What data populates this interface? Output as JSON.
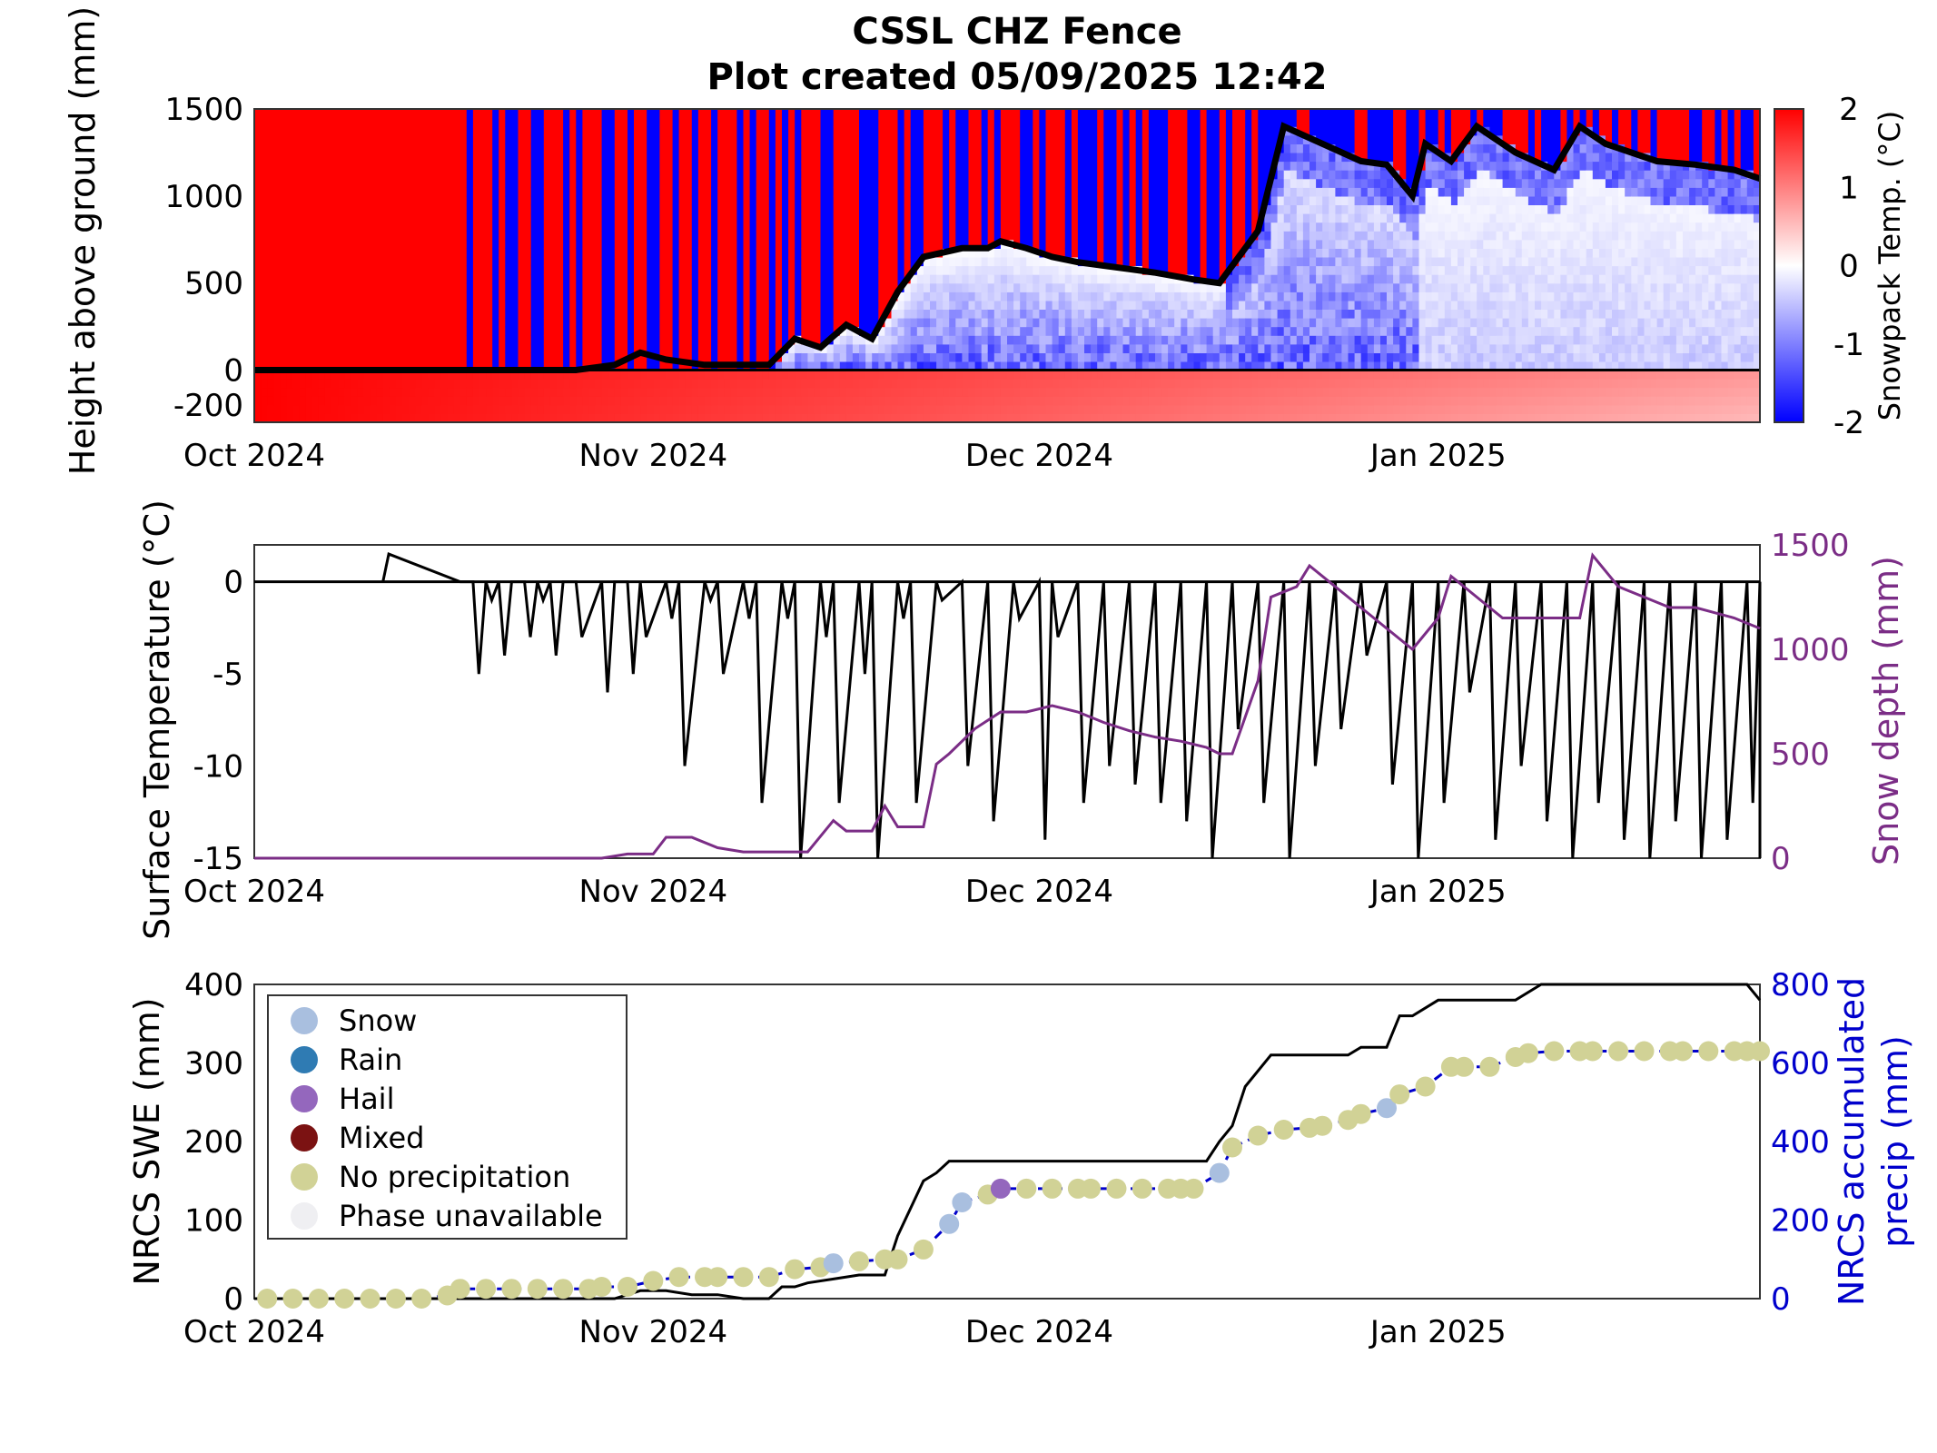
{
  "figure": {
    "title_line1": "CSSL CHZ Fence",
    "title_line2": "Plot created 05/09/2025 12:42"
  },
  "chart_data": [
    {
      "type": "heatmap",
      "ylabel": "Height above ground (mm)",
      "colorbar_label": "Snowpack Temp. (°C)",
      "colorbar_ticks": [
        "2",
        "1",
        "0",
        "-1",
        "-2"
      ],
      "colorbar_range": [
        -2,
        2
      ],
      "colormap": [
        "#0000ff",
        "#ffffff",
        "#ff0000"
      ],
      "ylim": [
        -300,
        1500
      ],
      "yticks": [
        "1500",
        "1000",
        "500",
        "0",
        "-200"
      ],
      "xticks": [
        "Oct 2024",
        "Nov 2024",
        "Dec 2024",
        "Jan 2025"
      ],
      "xlim_days": [
        0,
        117
      ],
      "snow_depth_line": {
        "color": "#000000",
        "x_days": [
          0,
          25,
          28,
          30,
          32,
          35,
          37,
          40,
          42,
          44,
          46,
          48,
          50,
          52,
          55,
          57,
          58,
          60,
          62,
          64,
          66,
          68,
          70,
          73,
          75,
          78,
          80,
          83,
          86,
          88,
          90,
          91,
          93,
          95,
          98,
          101,
          103,
          105,
          107,
          109,
          112,
          115,
          117
        ],
        "depth_mm": [
          0,
          0,
          30,
          100,
          60,
          30,
          30,
          30,
          180,
          130,
          260,
          180,
          450,
          650,
          700,
          700,
          740,
          700,
          650,
          620,
          600,
          580,
          560,
          520,
          500,
          800,
          1400,
          1300,
          1200,
          1180,
          1000,
          1300,
          1200,
          1400,
          1250,
          1150,
          1400,
          1300,
          1250,
          1200,
          1180,
          1150,
          1100
        ]
      }
    },
    {
      "type": "line",
      "ylabel": "Surface Temperature (°C)",
      "ylabel_right": "Snow depth (mm)",
      "ylim": [
        -15,
        2
      ],
      "ylim_right": [
        0,
        1500
      ],
      "yticks": [
        "0",
        "-5",
        "-10",
        "-15"
      ],
      "yticks_right": [
        "1500",
        "1000",
        "500",
        "0"
      ],
      "xticks": [
        "Oct 2024",
        "Nov 2024",
        "Dec 2024",
        "Jan 2025"
      ],
      "series": [
        {
          "axis": "left",
          "color": "#000000",
          "note_values": "diurnal temperature oscillation",
          "x_days": [
            10,
            16,
            17,
            18,
            19,
            20,
            21,
            22,
            23,
            24,
            25,
            27,
            28,
            29,
            30,
            32,
            33,
            35,
            36,
            38,
            39,
            41,
            42,
            44,
            45,
            47,
            48,
            50,
            51,
            53,
            55,
            57,
            59,
            61,
            62,
            64,
            66,
            68,
            70,
            72,
            74,
            76,
            78,
            80,
            82,
            84,
            86,
            88,
            90,
            92,
            94,
            96,
            98,
            100,
            102,
            104,
            106,
            108,
            110,
            112,
            114,
            116,
            117
          ],
          "temp_c": [
            1.5,
            0,
            -5,
            -1,
            -4,
            0,
            -3,
            -1,
            -4,
            0,
            -3,
            -6,
            0,
            -5,
            -3,
            -2,
            -10,
            -1,
            -5,
            -2,
            -12,
            -2,
            -15,
            -3,
            -12,
            -5,
            -15,
            -2,
            -12,
            -1,
            -10,
            -13,
            -2,
            -14,
            -3,
            -12,
            -10,
            -11,
            -12,
            -13,
            -15,
            -8,
            -12,
            -15,
            -10,
            -8,
            -4,
            -11,
            -15,
            -12,
            -6,
            -14,
            -10,
            -13,
            -15,
            -12,
            -14,
            -15,
            -13,
            -15,
            -14,
            -12,
            -15
          ]
        },
        {
          "axis": "right",
          "name": "Snow depth (mm)",
          "color": "#7b2d86",
          "x_days": [
            0,
            27,
            29,
            31,
            32,
            34,
            36,
            38,
            40,
            41,
            43,
            45,
            46,
            48,
            49,
            50,
            52,
            53,
            54,
            56,
            58,
            60,
            62,
            64,
            66,
            68,
            70,
            72,
            74,
            75,
            76,
            78,
            79,
            81,
            82,
            84,
            86,
            88,
            90,
            92,
            93,
            94,
            96,
            97,
            99,
            101,
            103,
            104,
            106,
            108,
            110,
            112,
            115,
            117
          ],
          "depth_mm": [
            0,
            0,
            20,
            20,
            100,
            100,
            50,
            30,
            30,
            30,
            30,
            180,
            130,
            130,
            250,
            150,
            150,
            450,
            500,
            620,
            700,
            700,
            730,
            700,
            650,
            610,
            580,
            560,
            530,
            500,
            500,
            850,
            1250,
            1300,
            1400,
            1300,
            1200,
            1100,
            1000,
            1150,
            1350,
            1300,
            1200,
            1150,
            1150,
            1150,
            1150,
            1450,
            1300,
            1250,
            1200,
            1200,
            1150,
            1100
          ]
        }
      ]
    },
    {
      "type": "line",
      "ylabel": "NRCS SWE (mm)",
      "ylabel_right": "NRCS accumulated precip (mm)",
      "ylim": [
        0,
        400
      ],
      "ylim_right": [
        0,
        800
      ],
      "yticks": [
        "400",
        "300",
        "200",
        "100",
        "0"
      ],
      "yticks_right": [
        "800",
        "600",
        "400",
        "200",
        "0"
      ],
      "xticks": [
        "Oct 2024",
        "Nov 2024",
        "Dec 2024",
        "Jan 2025"
      ],
      "series": [
        {
          "axis": "left",
          "name": "NRCS SWE (mm)",
          "color": "#000000",
          "x_days": [
            0,
            28,
            30,
            32,
            34,
            36,
            38,
            40,
            41,
            42,
            43,
            45,
            47,
            49,
            50,
            52,
            53,
            54,
            56,
            58,
            60,
            62,
            64,
            66,
            68,
            70,
            72,
            74,
            75,
            76,
            77,
            79,
            81,
            83,
            85,
            86,
            87,
            88,
            89,
            90,
            92,
            94,
            95,
            96,
            98,
            100,
            102,
            104,
            106,
            108,
            110,
            112,
            114,
            116,
            117
          ],
          "swe_mm": [
            0,
            0,
            10,
            10,
            5,
            5,
            0,
            0,
            15,
            15,
            20,
            25,
            30,
            30,
            80,
            150,
            160,
            175,
            175,
            175,
            175,
            175,
            175,
            175,
            175,
            175,
            175,
            175,
            200,
            220,
            270,
            310,
            310,
            310,
            310,
            320,
            320,
            320,
            360,
            360,
            380,
            380,
            380,
            380,
            380,
            400,
            400,
            400,
            400,
            400,
            400,
            400,
            400,
            400,
            380
          ]
        },
        {
          "axis": "right",
          "name": "NRCS accumulated precip (mm)",
          "color": "#0000cc",
          "style": "dashed",
          "markers": [
            {
              "day": 1,
              "value": 0,
              "phase": "No precipitation"
            },
            {
              "day": 3,
              "value": 0,
              "phase": "No precipitation"
            },
            {
              "day": 5,
              "value": 0,
              "phase": "No precipitation"
            },
            {
              "day": 7,
              "value": 0,
              "phase": "No precipitation"
            },
            {
              "day": 9,
              "value": 0,
              "phase": "No precipitation"
            },
            {
              "day": 11,
              "value": 0,
              "phase": "No precipitation"
            },
            {
              "day": 13,
              "value": 0,
              "phase": "No precipitation"
            },
            {
              "day": 15,
              "value": 8,
              "phase": "No precipitation"
            },
            {
              "day": 16,
              "value": 25,
              "phase": "No precipitation"
            },
            {
              "day": 18,
              "value": 25,
              "phase": "No precipitation"
            },
            {
              "day": 20,
              "value": 25,
              "phase": "No precipitation"
            },
            {
              "day": 22,
              "value": 25,
              "phase": "No precipitation"
            },
            {
              "day": 24,
              "value": 25,
              "phase": "No precipitation"
            },
            {
              "day": 26,
              "value": 25,
              "phase": "No precipitation"
            },
            {
              "day": 27,
              "value": 30,
              "phase": "No precipitation"
            },
            {
              "day": 29,
              "value": 30,
              "phase": "No precipitation"
            },
            {
              "day": 31,
              "value": 45,
              "phase": "No precipitation"
            },
            {
              "day": 33,
              "value": 55,
              "phase": "No precipitation"
            },
            {
              "day": 35,
              "value": 55,
              "phase": "No precipitation"
            },
            {
              "day": 36,
              "value": 55,
              "phase": "No precipitation"
            },
            {
              "day": 38,
              "value": 55,
              "phase": "No precipitation"
            },
            {
              "day": 40,
              "value": 55,
              "phase": "No precipitation"
            },
            {
              "day": 42,
              "value": 75,
              "phase": "No precipitation"
            },
            {
              "day": 44,
              "value": 80,
              "phase": "No precipitation"
            },
            {
              "day": 45,
              "value": 90,
              "phase": "Snow"
            },
            {
              "day": 47,
              "value": 95,
              "phase": "No precipitation"
            },
            {
              "day": 49,
              "value": 100,
              "phase": "No precipitation"
            },
            {
              "day": 50,
              "value": 100,
              "phase": "No precipitation"
            },
            {
              "day": 52,
              "value": 125,
              "phase": "No precipitation"
            },
            {
              "day": 54,
              "value": 190,
              "phase": "Snow"
            },
            {
              "day": 55,
              "value": 245,
              "phase": "Snow"
            },
            {
              "day": 57,
              "value": 265,
              "phase": "No precipitation"
            },
            {
              "day": 58,
              "value": 280,
              "phase": "Hail"
            },
            {
              "day": 60,
              "value": 280,
              "phase": "No precipitation"
            },
            {
              "day": 62,
              "value": 280,
              "phase": "No precipitation"
            },
            {
              "day": 64,
              "value": 280,
              "phase": "No precipitation"
            },
            {
              "day": 65,
              "value": 280,
              "phase": "No precipitation"
            },
            {
              "day": 67,
              "value": 280,
              "phase": "No precipitation"
            },
            {
              "day": 69,
              "value": 280,
              "phase": "No precipitation"
            },
            {
              "day": 71,
              "value": 280,
              "phase": "No precipitation"
            },
            {
              "day": 72,
              "value": 280,
              "phase": "No precipitation"
            },
            {
              "day": 73,
              "value": 280,
              "phase": "No precipitation"
            },
            {
              "day": 75,
              "value": 320,
              "phase": "Snow"
            },
            {
              "day": 76,
              "value": 385,
              "phase": "No precipitation"
            },
            {
              "day": 78,
              "value": 415,
              "phase": "No precipitation"
            },
            {
              "day": 80,
              "value": 430,
              "phase": "No precipitation"
            },
            {
              "day": 82,
              "value": 435,
              "phase": "No precipitation"
            },
            {
              "day": 83,
              "value": 440,
              "phase": "No precipitation"
            },
            {
              "day": 85,
              "value": 455,
              "phase": "No precipitation"
            },
            {
              "day": 86,
              "value": 470,
              "phase": "No precipitation"
            },
            {
              "day": 88,
              "value": 485,
              "phase": "Snow"
            },
            {
              "day": 89,
              "value": 520,
              "phase": "No precipitation"
            },
            {
              "day": 91,
              "value": 540,
              "phase": "No precipitation"
            },
            {
              "day": 93,
              "value": 590,
              "phase": "No precipitation"
            },
            {
              "day": 94,
              "value": 590,
              "phase": "No precipitation"
            },
            {
              "day": 96,
              "value": 590,
              "phase": "No precipitation"
            },
            {
              "day": 98,
              "value": 615,
              "phase": "No precipitation"
            },
            {
              "day": 99,
              "value": 625,
              "phase": "No precipitation"
            },
            {
              "day": 101,
              "value": 630,
              "phase": "No precipitation"
            },
            {
              "day": 103,
              "value": 630,
              "phase": "No precipitation"
            },
            {
              "day": 104,
              "value": 630,
              "phase": "No precipitation"
            },
            {
              "day": 106,
              "value": 630,
              "phase": "No precipitation"
            },
            {
              "day": 108,
              "value": 630,
              "phase": "No precipitation"
            },
            {
              "day": 110,
              "value": 630,
              "phase": "No precipitation"
            },
            {
              "day": 111,
              "value": 630,
              "phase": "No precipitation"
            },
            {
              "day": 113,
              "value": 630,
              "phase": "No precipitation"
            },
            {
              "day": 115,
              "value": 630,
              "phase": "No precipitation"
            },
            {
              "day": 116,
              "value": 630,
              "phase": "No precipitation"
            },
            {
              "day": 117,
              "value": 630,
              "phase": "No precipitation"
            }
          ]
        }
      ],
      "legend": {
        "position": "top-left",
        "entries": [
          {
            "label": "Snow",
            "color": "#a9bfdf"
          },
          {
            "label": "Rain",
            "color": "#2f7bb3"
          },
          {
            "label": "Hail",
            "color": "#9467bd"
          },
          {
            "label": "Mixed",
            "color": "#7b1212"
          },
          {
            "label": "No precipitation",
            "color": "#d1d296"
          },
          {
            "label": "Phase unavailable",
            "color": "#efeff2"
          }
        ]
      }
    }
  ]
}
